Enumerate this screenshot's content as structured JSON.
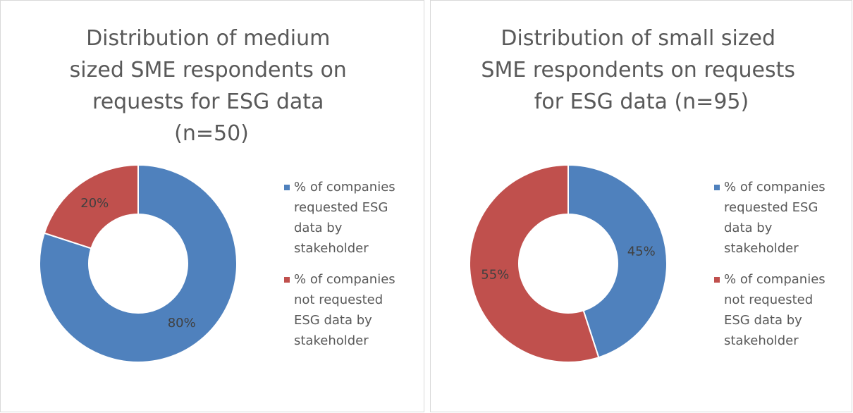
{
  "chart_data": [
    {
      "type": "donut",
      "title": "Distribution of medium sized SME respondents on requests for ESG data (n=50)",
      "categories": [
        "% of companies requested ESG data by stakeholder",
        "% of companies not requested ESG data by stakeholder"
      ],
      "values": [
        80,
        20
      ],
      "value_labels": [
        "80%",
        "20%"
      ],
      "colors": [
        "#4f81bd",
        "#c0504d"
      ],
      "legend": "right"
    },
    {
      "type": "donut",
      "title": "Distribution of small sized SME respondents on requests for ESG data (n=95)",
      "categories": [
        "% of companies requested ESG data by stakeholder",
        "% of companies not requested ESG data by stakeholder"
      ],
      "values": [
        45,
        55
      ],
      "value_labels": [
        "45%",
        "55%"
      ],
      "colors": [
        "#4f81bd",
        "#c0504d"
      ],
      "legend": "right"
    }
  ]
}
